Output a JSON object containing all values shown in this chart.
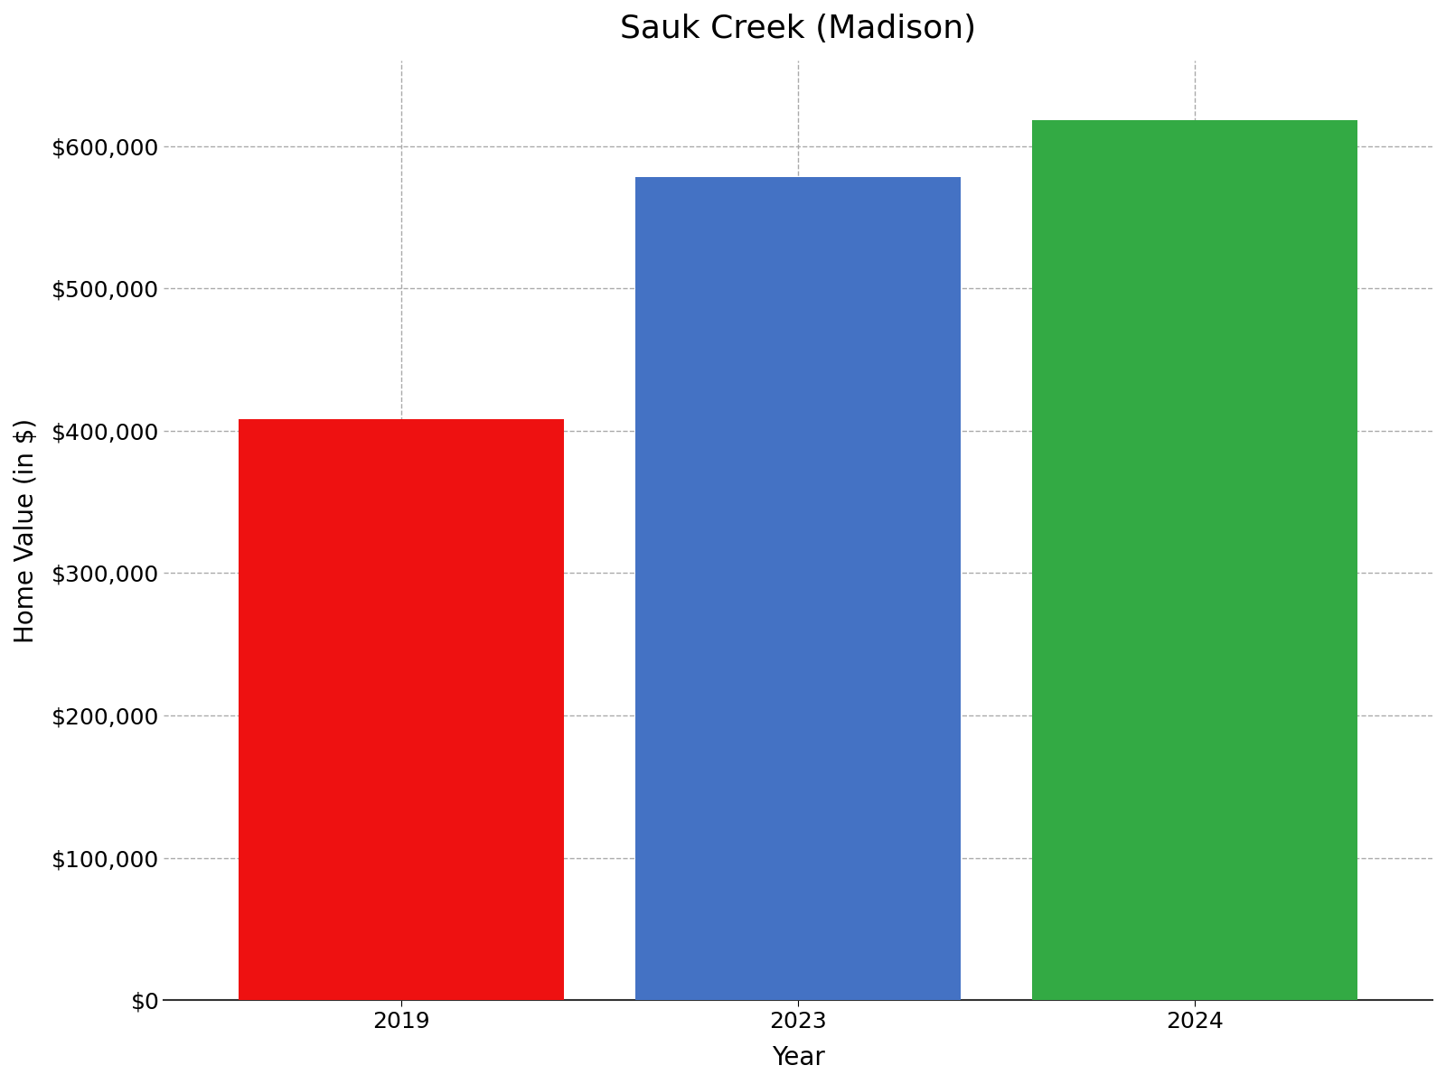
{
  "categories": [
    "2019",
    "2023",
    "2024"
  ],
  "values": [
    408000,
    578000,
    618000
  ],
  "bar_colors": [
    "#ee1111",
    "#4472c4",
    "#33aa44"
  ],
  "title": "Sauk Creek (Madison)",
  "xlabel": "Year",
  "ylabel": "Home Value (in $)",
  "ylim": [
    0,
    660000
  ],
  "yticks": [
    0,
    100000,
    200000,
    300000,
    400000,
    500000,
    600000
  ],
  "title_fontsize": 26,
  "axis_label_fontsize": 20,
  "tick_fontsize": 18,
  "bar_width": 0.82,
  "grid_color": "#aaaaaa",
  "background_color": "#ffffff",
  "xlim": [
    -0.6,
    2.6
  ]
}
